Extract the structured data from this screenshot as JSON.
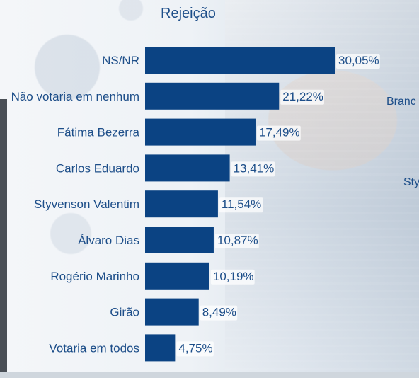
{
  "chart_data": {
    "type": "bar",
    "orientation": "horizontal",
    "title": "Rejeição",
    "categories": [
      "NS/NR",
      "Não votaria em nenhum",
      "Fátima Bezerra",
      "Carlos Eduardo",
      "Styvenson Valentim",
      "Álvaro Dias",
      "Rogério Marinho",
      "Girão",
      "Votaria em todos"
    ],
    "values": [
      30.05,
      21.22,
      17.49,
      13.41,
      11.54,
      10.87,
      10.19,
      8.49,
      4.75
    ],
    "value_labels": [
      "30,05%",
      "21,22%",
      "17,49%",
      "13,41%",
      "11,54%",
      "10,87%",
      "10,19%",
      "8,49%",
      "4,75%"
    ],
    "xlim": [
      0,
      30.05
    ],
    "grid": false,
    "colors": {
      "bar": "#0b4383",
      "text": "#1d4e89",
      "label_bg": "#ffffff"
    }
  },
  "side_labels": {
    "branc": "Branc",
    "sty": "Sty"
  }
}
